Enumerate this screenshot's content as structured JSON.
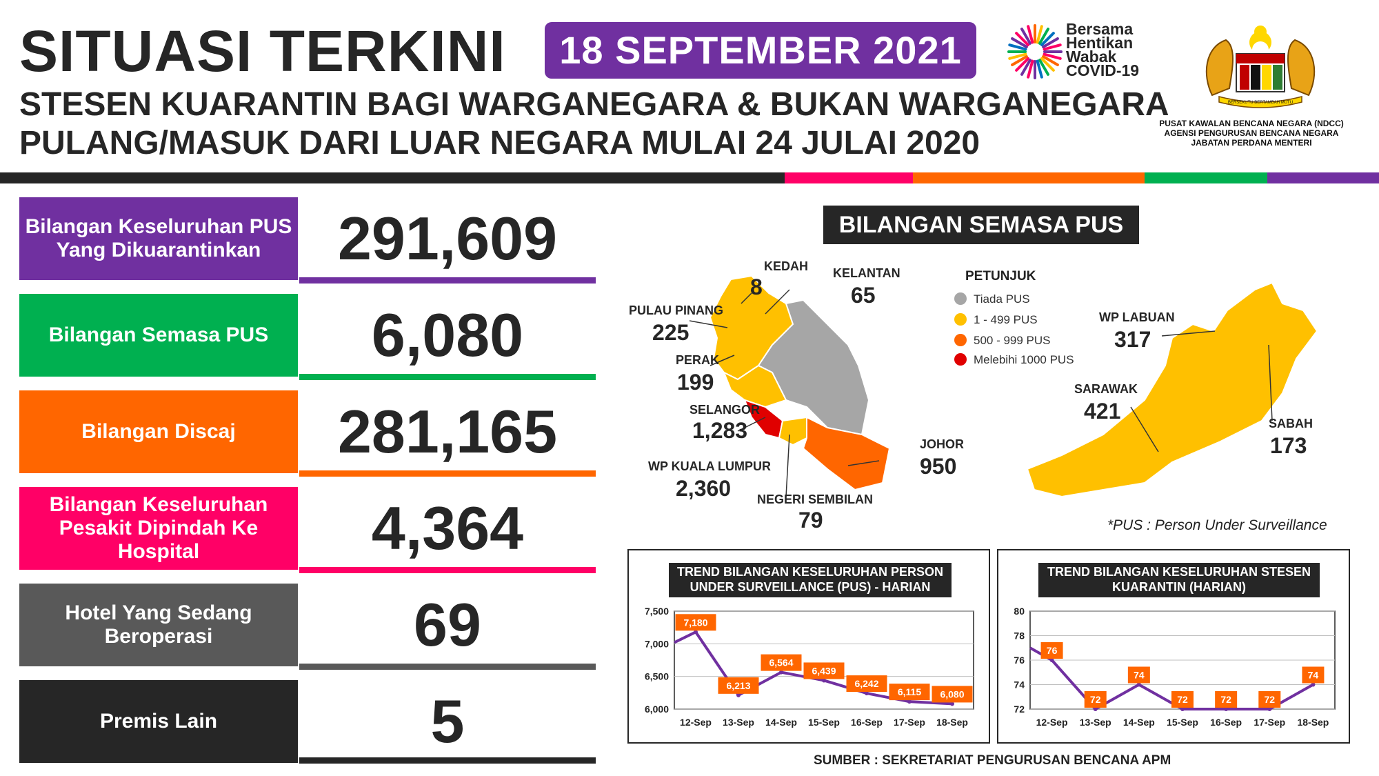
{
  "header": {
    "title": "SITUASI TERKINI",
    "date": "18 SEPTEMBER 2021",
    "subtitle_line1": "STESEN KUARANTIN BAGI WARGANEGARA & BUKAN WARGANEGARA",
    "subtitle_line2": "PULANG/MASUK DARI LUAR NEGARA MULAI 24 JULAI 2020",
    "campaign_line1": "Bersama",
    "campaign_line2": "Hentikan",
    "campaign_line3": "Wabak",
    "campaign_line4": "COVID-19",
    "agency_line1": "PUSAT KAWALAN BENCANA NEGARA (NDCC)",
    "agency_line2": "AGENSI PENGURUSAN BENCANA NEGARA",
    "agency_line3": "JABATAN PERDANA MENTERI",
    "crest_motto": "BERSEKUTU BERTAMBAH MUTU",
    "colors": {
      "purple": "#7030A0",
      "dark": "#262626"
    }
  },
  "stats": [
    {
      "label": "Bilangan Keseluruhan PUS Yang Dikuarantinkan",
      "value": "291,609",
      "color": "#7030A0"
    },
    {
      "label": "Bilangan Semasa PUS",
      "value": "6,080",
      "color": "#00B050"
    },
    {
      "label": "Bilangan Discaj",
      "value": "281,165",
      "color": "#FF6600"
    },
    {
      "label": "Bilangan Keseluruhan Pesakit Dipindah Ke Hospital",
      "value": "4,364",
      "color": "#FF0066"
    },
    {
      "label": "Hotel Yang Sedang Beroperasi",
      "value": "69",
      "color": "#595959"
    },
    {
      "label": "Premis Lain",
      "value": "5",
      "color": "#262626"
    }
  ],
  "map": {
    "title": "BILANGAN SEMASA PUS",
    "legend_title": "PETUNJUK",
    "legend": [
      {
        "label": "Tiada PUS",
        "color": "#A6A6A6"
      },
      {
        "label": "1 - 499 PUS",
        "color": "#FFC000"
      },
      {
        "label": "500 - 999 PUS",
        "color": "#FF6600"
      },
      {
        "label": "Melebihi 1000 PUS",
        "color": "#E00000"
      }
    ],
    "states": [
      {
        "name": "KEDAH",
        "value": "8"
      },
      {
        "name": "KELANTAN",
        "value": "65"
      },
      {
        "name": "PULAU PINANG",
        "value": "225"
      },
      {
        "name": "PERAK",
        "value": "199"
      },
      {
        "name": "SELANGOR",
        "value": "1,283"
      },
      {
        "name": "WP KUALA LUMPUR",
        "value": "2,360"
      },
      {
        "name": "NEGERI SEMBILAN",
        "value": "79"
      },
      {
        "name": "JOHOR",
        "value": "950"
      },
      {
        "name": "WP LABUAN",
        "value": "317"
      },
      {
        "name": "SARAWAK",
        "value": "421"
      },
      {
        "name": "SABAH",
        "value": "173"
      }
    ],
    "note": "*PUS : Person Under Surveillance"
  },
  "chart_data": [
    {
      "type": "line",
      "title": "TREND BILANGAN KESELURUHAN PERSON UNDER SURVEILLANCE (PUS) - HARIAN",
      "categories": [
        "12-Sep",
        "13-Sep",
        "14-Sep",
        "15-Sep",
        "16-Sep",
        "17-Sep",
        "18-Sep"
      ],
      "values": [
        7180,
        6213,
        6564,
        6439,
        6242,
        6115,
        6080
      ],
      "labels": [
        "7,180",
        "6,213",
        "6,564",
        "6,439",
        "6,242",
        "6,115",
        "6,080"
      ],
      "start_value": 7020,
      "ylim": [
        6000,
        7500
      ],
      "yticks": [
        "6,000",
        "6,500",
        "7,000",
        "7,500"
      ],
      "ytick_values": [
        6000,
        6500,
        7000,
        7500
      ],
      "line_color": "#7030A0",
      "label_color": "#FF6600",
      "grid": true
    },
    {
      "type": "line",
      "title": "TREND BILANGAN KESELURUHAN STESEN KUARANTIN (HARIAN)",
      "categories": [
        "12-Sep",
        "13-Sep",
        "14-Sep",
        "15-Sep",
        "16-Sep",
        "17-Sep",
        "18-Sep"
      ],
      "values": [
        76,
        72,
        74,
        72,
        72,
        72,
        74
      ],
      "labels": [
        "76",
        "72",
        "74",
        "72",
        "72",
        "72",
        "74"
      ],
      "start_value": 77,
      "ylim": [
        72,
        80
      ],
      "yticks": [
        "72",
        "74",
        "76",
        "78",
        "80"
      ],
      "ytick_values": [
        72,
        74,
        76,
        78,
        80
      ],
      "line_color": "#7030A0",
      "label_color": "#FF6600",
      "grid": true
    }
  ],
  "footer": {
    "source": "SUMBER : SEKRETARIAT PENGURUSAN BENCANA APM"
  }
}
